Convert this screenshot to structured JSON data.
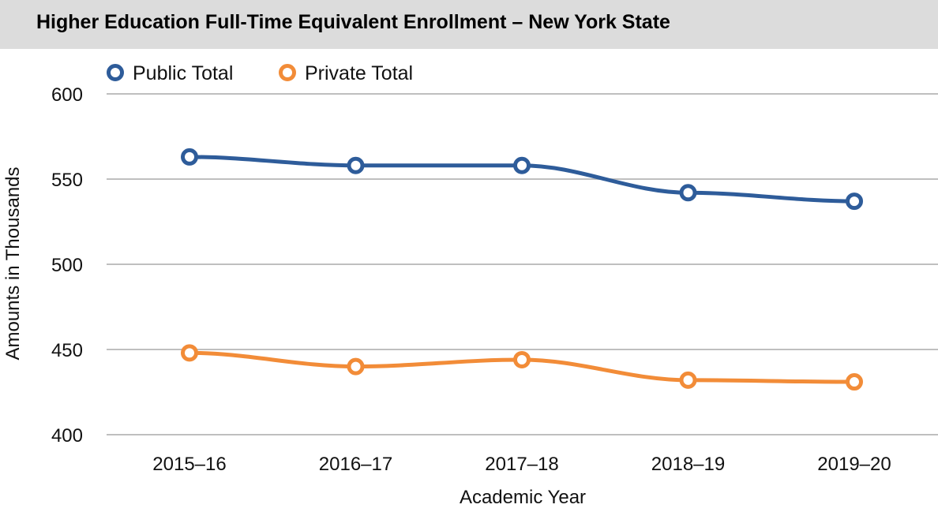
{
  "header": {
    "title": "Higher Education Full-Time Equivalent Enrollment – New York State"
  },
  "chart_data": {
    "type": "line",
    "title": "Higher Education Full-Time Equivalent Enrollment – New York State",
    "xlabel": "Academic Year",
    "ylabel": "Amounts in Thousands",
    "categories": [
      "2015–16",
      "2016–17",
      "2017–18",
      "2018–19",
      "2019–20"
    ],
    "ylim": [
      400,
      600
    ],
    "yticks": [
      400,
      450,
      500,
      550,
      600
    ],
    "grid": "horizontal",
    "legend_position": "top-left",
    "series": [
      {
        "name": "Public Total",
        "color": "#2e5c9a",
        "values": [
          563,
          558,
          558,
          542,
          537
        ]
      },
      {
        "name": "Private Total",
        "color": "#f28c38",
        "values": [
          448,
          440,
          444,
          432,
          431
        ]
      }
    ]
  }
}
